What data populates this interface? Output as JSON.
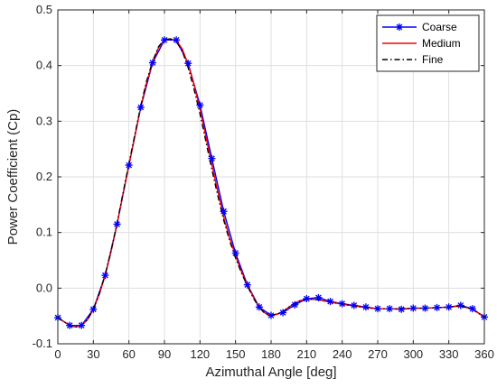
{
  "chart_data": {
    "type": "line",
    "title": "",
    "xlabel": "Azimuthal Angle [deg]",
    "ylabel": "Power Coefficient (Cp)",
    "xlim": [
      0,
      360
    ],
    "ylim": [
      -0.1,
      0.5
    ],
    "xticks": [
      0,
      30,
      60,
      90,
      120,
      150,
      180,
      210,
      240,
      270,
      300,
      330,
      360
    ],
    "yticks": [
      -0.1,
      0,
      0.1,
      0.2,
      0.3,
      0.4,
      0.5
    ],
    "xtick_labels": [
      "0",
      "30",
      "60",
      "90",
      "120",
      "150",
      "180",
      "210",
      "240",
      "270",
      "300",
      "330",
      "360"
    ],
    "ytick_labels": [
      "-0.1",
      "0.0",
      "0.1",
      "0.2",
      "0.3",
      "0.4",
      "0.5"
    ],
    "grid": true,
    "legend_position": "top-right",
    "series": [
      {
        "name": "Coarse",
        "color": "#0000ff",
        "line_style": "solid",
        "marker": "asterisk",
        "x": [
          0,
          10,
          20,
          30,
          40,
          50,
          60,
          70,
          80,
          90,
          100,
          110,
          120,
          130,
          140,
          150,
          160,
          170,
          180,
          190,
          200,
          210,
          220,
          230,
          240,
          250,
          260,
          270,
          280,
          290,
          300,
          310,
          320,
          330,
          340,
          350,
          360
        ],
        "y": [
          -0.053,
          -0.067,
          -0.067,
          -0.038,
          0.023,
          0.115,
          0.221,
          0.325,
          0.405,
          0.446,
          0.446,
          0.404,
          0.329,
          0.233,
          0.138,
          0.063,
          0.006,
          -0.034,
          -0.049,
          -0.044,
          -0.03,
          -0.019,
          -0.017,
          -0.024,
          -0.028,
          -0.031,
          -0.034,
          -0.037,
          -0.037,
          -0.038,
          -0.036,
          -0.036,
          -0.035,
          -0.034,
          -0.031,
          -0.037,
          -0.052
        ]
      },
      {
        "name": "Medium",
        "color": "#ff0000",
        "line_style": "solid",
        "marker": "none",
        "x": [
          0,
          5,
          10,
          15,
          20,
          25,
          30,
          35,
          40,
          45,
          50,
          55,
          60,
          65,
          70,
          75,
          80,
          85,
          90,
          95,
          100,
          105,
          110,
          115,
          120,
          125,
          130,
          135,
          140,
          145,
          150,
          155,
          160,
          165,
          170,
          175,
          180,
          185,
          190,
          195,
          200,
          205,
          210,
          215,
          220,
          225,
          230,
          240,
          250,
          260,
          270,
          280,
          290,
          300,
          310,
          320,
          330,
          340,
          350,
          360
        ],
        "y": [
          -0.053,
          -0.06,
          -0.067,
          -0.07,
          -0.067,
          -0.057,
          -0.038,
          -0.011,
          0.023,
          0.066,
          0.115,
          0.169,
          0.221,
          0.273,
          0.325,
          0.37,
          0.405,
          0.432,
          0.446,
          0.448,
          0.445,
          0.43,
          0.402,
          0.365,
          0.322,
          0.272,
          0.222,
          0.174,
          0.128,
          0.09,
          0.058,
          0.03,
          0.006,
          -0.016,
          -0.034,
          -0.045,
          -0.049,
          -0.047,
          -0.042,
          -0.034,
          -0.027,
          -0.022,
          -0.02,
          -0.02,
          -0.021,
          -0.023,
          -0.025,
          -0.029,
          -0.032,
          -0.035,
          -0.037,
          -0.037,
          -0.037,
          -0.036,
          -0.036,
          -0.035,
          -0.034,
          -0.032,
          -0.038,
          -0.052
        ]
      },
      {
        "name": "Fine",
        "color": "#000000",
        "line_style": "dashdot",
        "marker": "none",
        "x": [
          0,
          5,
          10,
          15,
          20,
          25,
          30,
          35,
          40,
          45,
          50,
          55,
          60,
          65,
          70,
          75,
          80,
          85,
          90,
          95,
          100,
          105,
          110,
          115,
          120,
          125,
          130,
          135,
          140,
          145,
          150,
          155,
          160,
          165,
          170,
          175,
          180,
          185,
          190,
          195,
          200,
          205,
          210,
          215,
          220,
          225,
          230,
          240,
          250,
          260,
          270,
          280,
          290,
          300,
          310,
          320,
          330,
          340,
          350,
          360
        ],
        "y": [
          -0.053,
          -0.06,
          -0.067,
          -0.07,
          -0.067,
          -0.057,
          -0.038,
          -0.01,
          0.025,
          0.068,
          0.117,
          0.171,
          0.224,
          0.276,
          0.328,
          0.373,
          0.408,
          0.434,
          0.447,
          0.448,
          0.443,
          0.426,
          0.396,
          0.357,
          0.313,
          0.263,
          0.213,
          0.166,
          0.122,
          0.085,
          0.054,
          0.027,
          0.004,
          -0.018,
          -0.035,
          -0.046,
          -0.049,
          -0.047,
          -0.042,
          -0.034,
          -0.027,
          -0.022,
          -0.02,
          -0.02,
          -0.021,
          -0.023,
          -0.025,
          -0.029,
          -0.032,
          -0.035,
          -0.037,
          -0.037,
          -0.037,
          -0.036,
          -0.036,
          -0.035,
          -0.034,
          -0.032,
          -0.038,
          -0.052
        ]
      }
    ]
  }
}
